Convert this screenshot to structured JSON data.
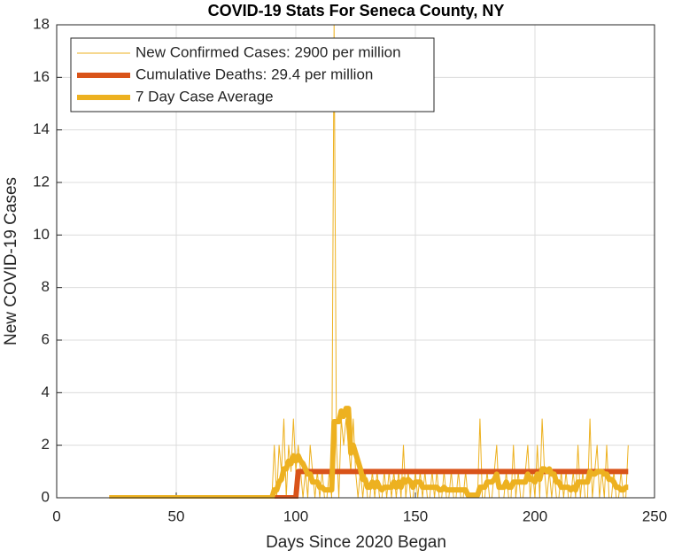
{
  "chart_data": {
    "type": "line",
    "title": "COVID-19 Stats For Seneca County, NY",
    "x_label": "Days Since 2020 Began",
    "y_label": "New COVID-19 Cases",
    "xlim": [
      0,
      250
    ],
    "xticks": [
      0,
      50,
      100,
      150,
      200,
      250
    ],
    "ylim": [
      0,
      18
    ],
    "yticks": [
      0,
      2,
      4,
      6,
      8,
      10,
      12,
      14,
      16,
      18
    ],
    "grid": true,
    "legend": "upper left",
    "x": [
      22,
      23,
      24,
      25,
      26,
      27,
      28,
      29,
      30,
      31,
      32,
      33,
      34,
      35,
      36,
      37,
      38,
      39,
      40,
      41,
      42,
      43,
      44,
      45,
      46,
      47,
      48,
      49,
      50,
      51,
      52,
      53,
      54,
      55,
      56,
      57,
      58,
      59,
      60,
      61,
      62,
      63,
      64,
      65,
      66,
      67,
      68,
      69,
      70,
      71,
      72,
      73,
      74,
      75,
      76,
      77,
      78,
      79,
      80,
      81,
      82,
      83,
      84,
      85,
      86,
      87,
      88,
      89,
      90,
      91,
      92,
      93,
      94,
      95,
      96,
      97,
      98,
      99,
      100,
      101,
      102,
      103,
      104,
      105,
      106,
      107,
      108,
      109,
      110,
      111,
      112,
      113,
      114,
      115,
      116,
      117,
      118,
      119,
      120,
      121,
      122,
      123,
      124,
      125,
      126,
      127,
      128,
      129,
      130,
      131,
      132,
      133,
      134,
      135,
      136,
      137,
      138,
      139,
      140,
      141,
      142,
      143,
      144,
      145,
      146,
      147,
      148,
      149,
      150,
      151,
      152,
      153,
      154,
      155,
      156,
      157,
      158,
      159,
      160,
      161,
      162,
      163,
      164,
      165,
      166,
      167,
      168,
      169,
      170,
      171,
      172,
      173,
      174,
      175,
      176,
      177,
      178,
      179,
      180,
      181,
      182,
      183,
      184,
      185,
      186,
      187,
      188,
      189,
      190,
      191,
      192,
      193,
      194,
      195,
      196,
      197,
      198,
      199,
      200,
      201,
      202,
      203,
      204,
      205,
      206,
      207,
      208,
      209,
      210,
      211,
      212,
      213,
      214,
      215,
      216,
      217,
      218,
      219,
      220,
      221,
      222,
      223,
      224,
      225,
      226,
      227,
      228,
      229,
      230,
      231,
      232,
      233,
      234,
      235,
      236,
      237,
      238,
      239
    ],
    "series": [
      {
        "name": "New Confirmed Cases: 2900 per million",
        "color": "#EDB120",
        "line_width": 1,
        "values": [
          0,
          0,
          0,
          0,
          0,
          0,
          0,
          0,
          0,
          0,
          0,
          0,
          0,
          0,
          0,
          0,
          0,
          0,
          0,
          0,
          0,
          0,
          0,
          0,
          0,
          0,
          0,
          0,
          0,
          0,
          0,
          0,
          0,
          0,
          0,
          0,
          0,
          0,
          0,
          0,
          0,
          0,
          0,
          0,
          0,
          0,
          0,
          0,
          0,
          0,
          0,
          0,
          0,
          0,
          0,
          0,
          0,
          0,
          0,
          0,
          0,
          0,
          0,
          0,
          0,
          0,
          0,
          0,
          0,
          2,
          0,
          2,
          1,
          3,
          0,
          2,
          1,
          3,
          1,
          2,
          1,
          0,
          1,
          0,
          2,
          1,
          0,
          1,
          0,
          1,
          0,
          0,
          1,
          0,
          18,
          2,
          0,
          3,
          2,
          3,
          2,
          1,
          3,
          1,
          0,
          1,
          0,
          1,
          0,
          0,
          1,
          0,
          1,
          0,
          0,
          1,
          0,
          1,
          0,
          1,
          0,
          1,
          0,
          2,
          0,
          1,
          0,
          0,
          1,
          0,
          1,
          0,
          1,
          0,
          0,
          1,
          0,
          1,
          0,
          0,
          1,
          0,
          0,
          1,
          0,
          0,
          1,
          0,
          0,
          1,
          0,
          0,
          0,
          0,
          0,
          3,
          0,
          0,
          1,
          0,
          0,
          1,
          2,
          0,
          0,
          0,
          1,
          0,
          0,
          2,
          0,
          1,
          0,
          0,
          1,
          2,
          0,
          1,
          0,
          2,
          0,
          3,
          1,
          0,
          1,
          0,
          1,
          0,
          0,
          1,
          0,
          1,
          0,
          0,
          1,
          0,
          2,
          0,
          1,
          0,
          0,
          3,
          0,
          1,
          2,
          0,
          1,
          0,
          2,
          0,
          0,
          1,
          0,
          0,
          1,
          0,
          0,
          2
        ]
      },
      {
        "name": "Cumulative Deaths: 29.4 per million",
        "color": "#D95319",
        "line_width": 6,
        "values": [
          0,
          0,
          0,
          0,
          0,
          0,
          0,
          0,
          0,
          0,
          0,
          0,
          0,
          0,
          0,
          0,
          0,
          0,
          0,
          0,
          0,
          0,
          0,
          0,
          0,
          0,
          0,
          0,
          0,
          0,
          0,
          0,
          0,
          0,
          0,
          0,
          0,
          0,
          0,
          0,
          0,
          0,
          0,
          0,
          0,
          0,
          0,
          0,
          0,
          0,
          0,
          0,
          0,
          0,
          0,
          0,
          0,
          0,
          0,
          0,
          0,
          0,
          0,
          0,
          0,
          0,
          0,
          0,
          0,
          0,
          0,
          0,
          0,
          0,
          0,
          0,
          0,
          0,
          0,
          1,
          1,
          1,
          1,
          1,
          1,
          1,
          1,
          1,
          1,
          1,
          1,
          1,
          1,
          1,
          1,
          1,
          1,
          1,
          1,
          1,
          1,
          1,
          1,
          1,
          1,
          1,
          1,
          1,
          1,
          1,
          1,
          1,
          1,
          1,
          1,
          1,
          1,
          1,
          1,
          1,
          1,
          1,
          1,
          1,
          1,
          1,
          1,
          1,
          1,
          1,
          1,
          1,
          1,
          1,
          1,
          1,
          1,
          1,
          1,
          1,
          1,
          1,
          1,
          1,
          1,
          1,
          1,
          1,
          1,
          1,
          1,
          1,
          1,
          1,
          1,
          1,
          1,
          1,
          1,
          1,
          1,
          1,
          1,
          1,
          1,
          1,
          1,
          1,
          1,
          1,
          1,
          1,
          1,
          1,
          1,
          1,
          1,
          1,
          1,
          1,
          1,
          1,
          1,
          1,
          1,
          1,
          1,
          1,
          1,
          1,
          1,
          1,
          1,
          1,
          1,
          1,
          1,
          1,
          1,
          1,
          1,
          1,
          1,
          1,
          1,
          1,
          1,
          1,
          1,
          1,
          1,
          1,
          1,
          1,
          1,
          1,
          1,
          1
        ]
      },
      {
        "name": "7 Day Case Average",
        "color": "#EDB120",
        "line_width": 6,
        "values": [
          0,
          0,
          0,
          0,
          0,
          0,
          0,
          0,
          0,
          0,
          0,
          0,
          0,
          0,
          0,
          0,
          0,
          0,
          0,
          0,
          0,
          0,
          0,
          0,
          0,
          0,
          0,
          0,
          0,
          0,
          0,
          0,
          0,
          0,
          0,
          0,
          0,
          0,
          0,
          0,
          0,
          0,
          0,
          0,
          0,
          0,
          0,
          0,
          0,
          0,
          0,
          0,
          0,
          0,
          0,
          0,
          0,
          0,
          0,
          0,
          0,
          0,
          0,
          0,
          0,
          0,
          0,
          0,
          0,
          0.3,
          0.3,
          0.6,
          0.7,
          1.1,
          1.1,
          1.4,
          1.3,
          1.6,
          1.4,
          1.6,
          1.4,
          1.3,
          1.1,
          0.9,
          0.9,
          0.6,
          0.6,
          0.6,
          0.4,
          0.4,
          0.3,
          0.3,
          0.3,
          0.3,
          2.9,
          2.9,
          2.9,
          3.3,
          3.1,
          3.4,
          3.4,
          1.7,
          2.0,
          1.7,
          1.4,
          1.1,
          0.7,
          0.7,
          0.4,
          0.4,
          0.6,
          0.4,
          0.6,
          0.4,
          0.3,
          0.4,
          0.4,
          0.4,
          0.4,
          0.6,
          0.4,
          0.6,
          0.4,
          0.7,
          0.6,
          0.7,
          0.6,
          0.4,
          0.6,
          0.6,
          0.6,
          0.4,
          0.4,
          0.4,
          0.4,
          0.4,
          0.4,
          0.4,
          0.3,
          0.3,
          0.4,
          0.3,
          0.3,
          0.3,
          0.3,
          0.3,
          0.3,
          0.3,
          0.3,
          0.3,
          0.1,
          0.1,
          0.1,
          0.1,
          0.1,
          0.4,
          0.4,
          0.4,
          0.6,
          0.6,
          0.6,
          0.7,
          0.9,
          0.4,
          0.4,
          0.4,
          0.6,
          0.4,
          0.4,
          0.6,
          0.6,
          0.6,
          0.6,
          0.6,
          0.6,
          0.9,
          0.7,
          0.7,
          0.6,
          0.9,
          0.7,
          1.1,
          1.1,
          1.0,
          1.1,
          0.9,
          0.9,
          0.6,
          0.6,
          0.4,
          0.4,
          0.4,
          0.4,
          0.3,
          0.4,
          0.3,
          0.6,
          0.6,
          0.6,
          0.6,
          0.6,
          1.0,
          0.9,
          0.9,
          1.0,
          1.0,
          1.0,
          0.9,
          0.9,
          0.7,
          0.7,
          0.6,
          0.4,
          0.4,
          0.3,
          0.3,
          0.4,
          0.4
        ]
      }
    ]
  }
}
